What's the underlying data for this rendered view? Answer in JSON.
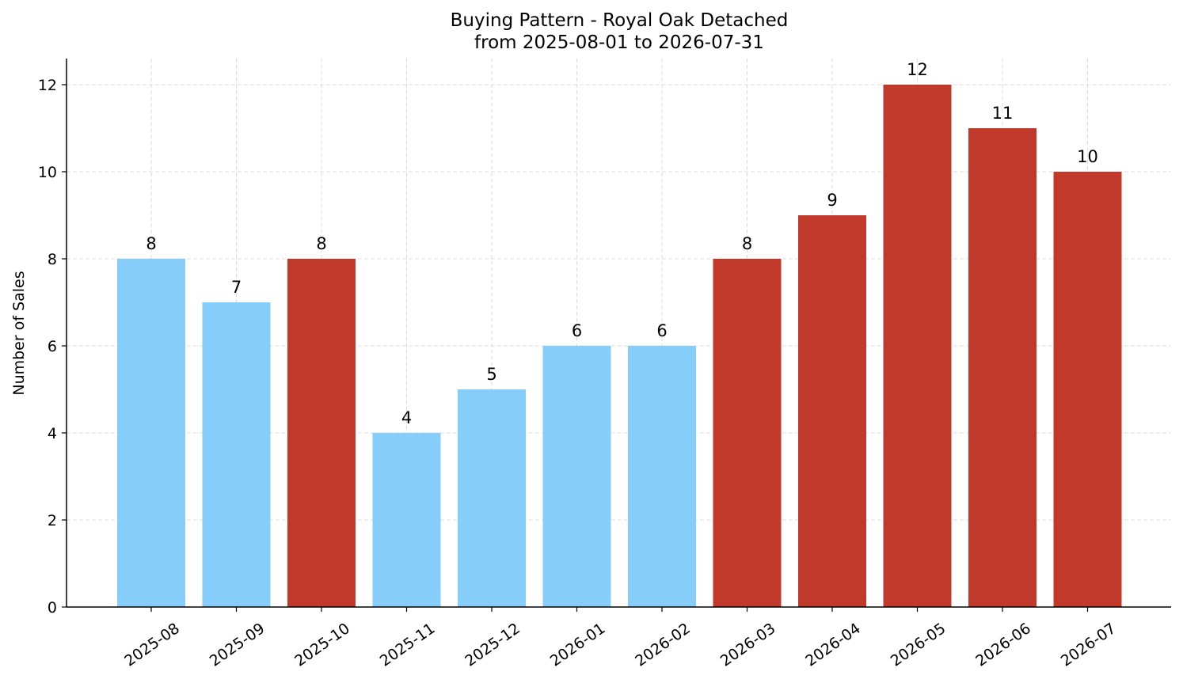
{
  "chart_data": {
    "type": "bar",
    "title": "Buying Pattern - Royal Oak Detached",
    "subtitle": "from 2025-08-01 to 2026-07-31",
    "xlabel": "",
    "ylabel": "Number of Sales",
    "ylim": [
      0,
      12.6
    ],
    "yticks": [
      0,
      2,
      4,
      6,
      8,
      10,
      12
    ],
    "grid": true,
    "categories": [
      "2025-08",
      "2025-09",
      "2025-10",
      "2025-11",
      "2025-12",
      "2026-01",
      "2026-02",
      "2026-03",
      "2026-04",
      "2026-05",
      "2026-06",
      "2026-07"
    ],
    "values": [
      8,
      7,
      8,
      4,
      5,
      6,
      6,
      8,
      9,
      12,
      11,
      10
    ],
    "bar_colors": [
      "#87cdf9",
      "#87cdf9",
      "#c0392b",
      "#87cdf9",
      "#87cdf9",
      "#87cdf9",
      "#87cdf9",
      "#c0392b",
      "#c0392b",
      "#c0392b",
      "#c0392b",
      "#c0392b"
    ]
  }
}
